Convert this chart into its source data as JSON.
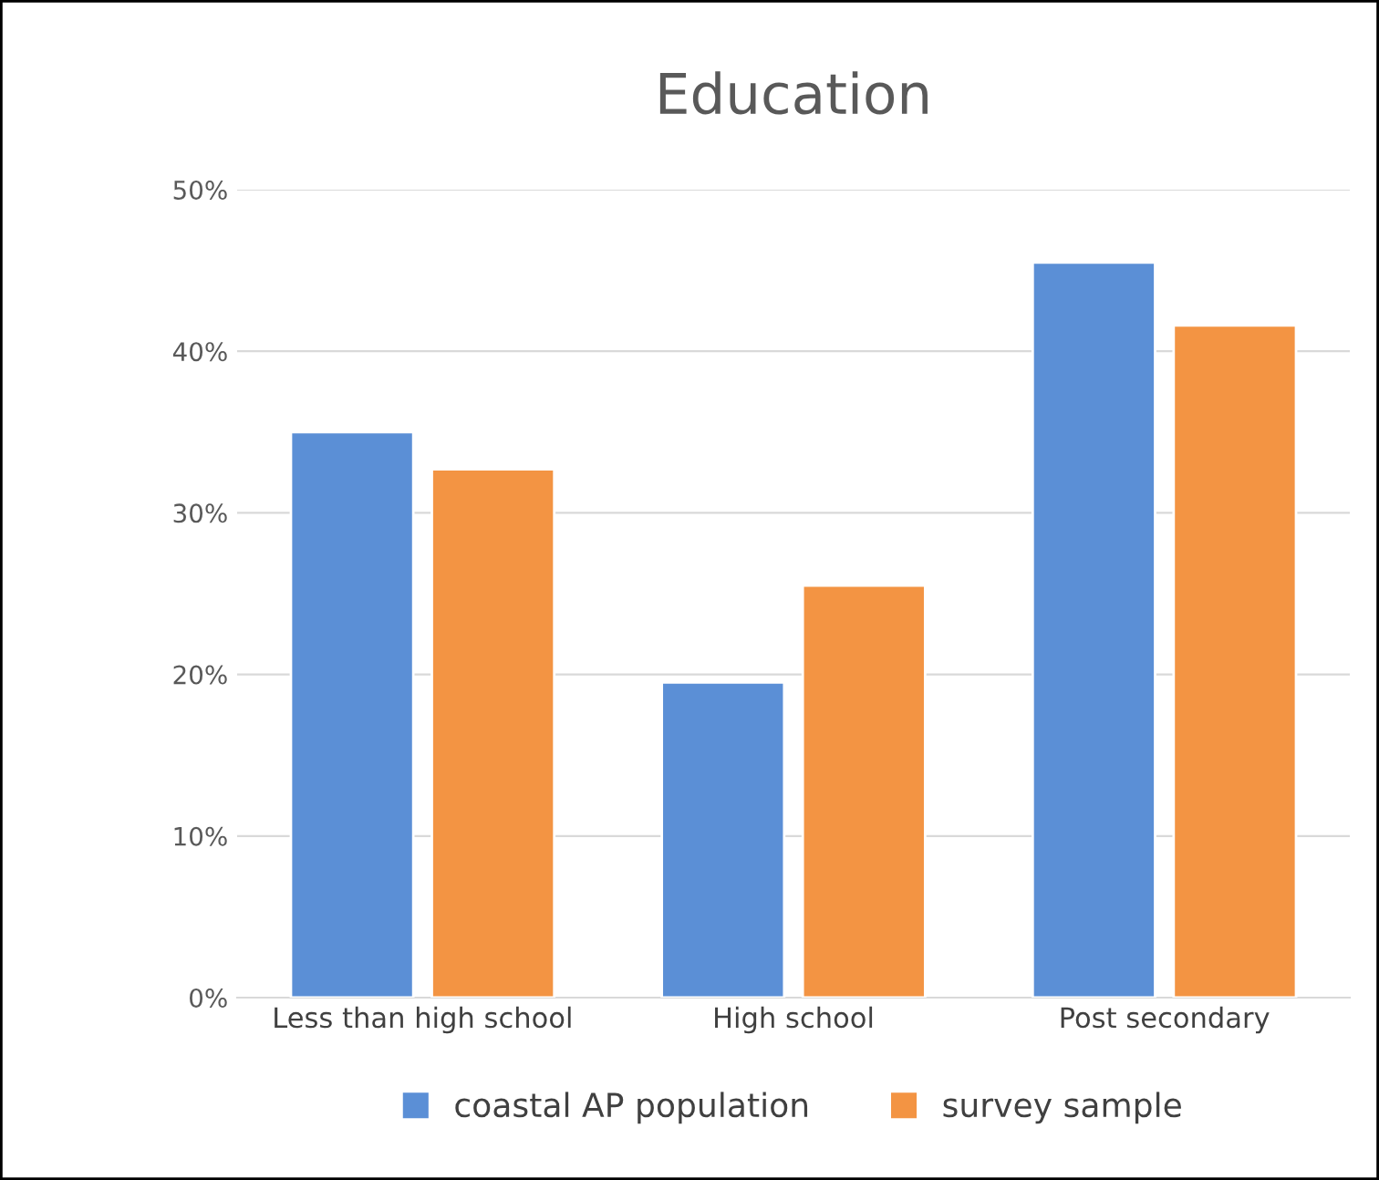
{
  "chart_data": {
    "type": "bar",
    "title": "Education",
    "categories": [
      "Less than high school",
      "High school",
      "Post secondary"
    ],
    "series": [
      {
        "name": "coastal AP population",
        "color": "#5b8fd6",
        "values": [
          35,
          19.5,
          45.5
        ]
      },
      {
        "name": "survey sample",
        "color": "#f39443",
        "values": [
          32.7,
          25.5,
          41.6
        ]
      }
    ],
    "ylim": [
      0,
      50
    ],
    "yticks": [
      {
        "value": 0,
        "label": "0%"
      },
      {
        "value": 10,
        "label": "10%"
      },
      {
        "value": 20,
        "label": "20%"
      },
      {
        "value": 30,
        "label": "30%"
      },
      {
        "value": 40,
        "label": "40%"
      },
      {
        "value": 50,
        "label": "50%"
      }
    ],
    "grid": "y",
    "legend": "bottom"
  }
}
